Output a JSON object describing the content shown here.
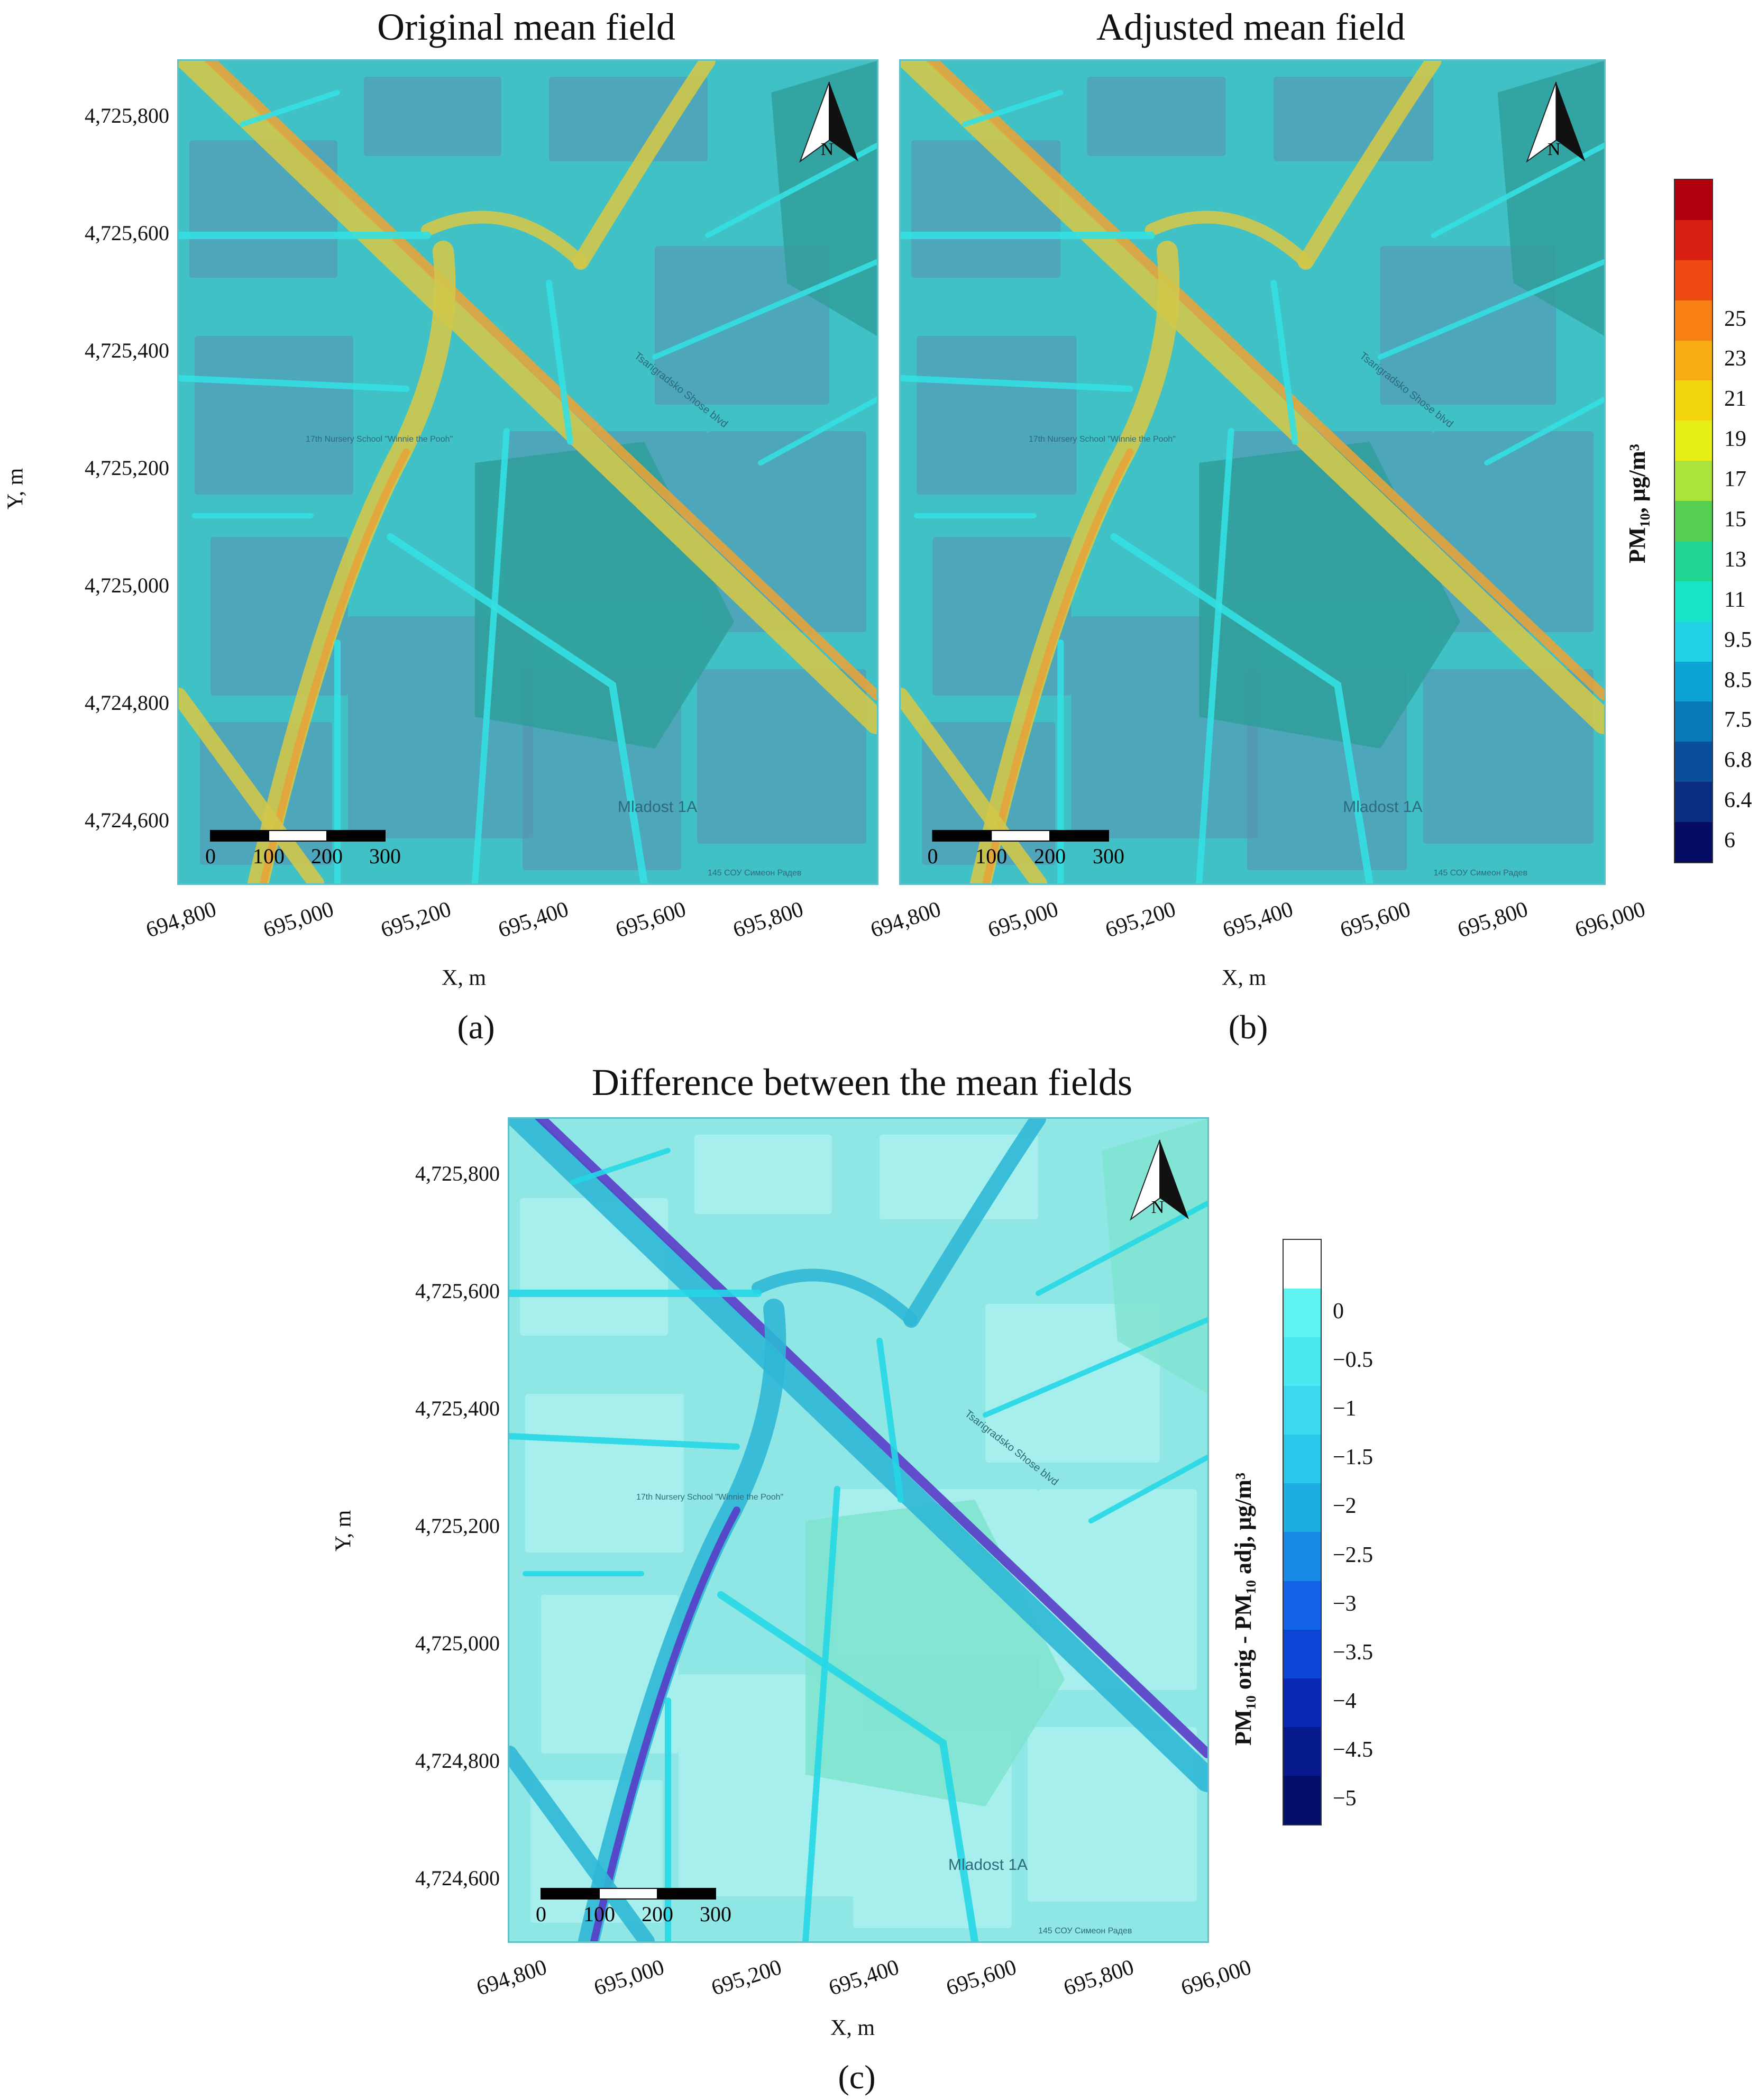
{
  "panels": [
    {
      "id": "a",
      "title": "Original mean field",
      "caption": "(a)",
      "ylabel": "Y, m",
      "xlabel": "X, m",
      "yticks": [
        "4,725,800",
        "4,725,600",
        "4,725,400",
        "4,725,200",
        "4,725,000",
        "4,724,800",
        "4,724,600"
      ],
      "xticks": [
        "694,800",
        "695,000",
        "695,200",
        "695,400",
        "695,600",
        "695,800"
      ]
    },
    {
      "id": "b",
      "title": "Adjusted mean field",
      "caption": "(b)",
      "ylabel": "",
      "xlabel": "X, m",
      "yticks": [],
      "xticks": [
        "694,800",
        "695,000",
        "695,200",
        "695,400",
        "695,600",
        "695,800",
        "696,000"
      ]
    },
    {
      "id": "c",
      "title": "Difference between the mean fields",
      "caption": "(c)",
      "ylabel": "Y, m",
      "xlabel": "X, m",
      "yticks": [
        "4,725,800",
        "4,725,600",
        "4,725,400",
        "4,725,200",
        "4,725,000",
        "4,724,800",
        "4,724,600"
      ],
      "xticks": [
        "694,800",
        "695,000",
        "695,200",
        "695,400",
        "695,600",
        "695,800",
        "696,000"
      ]
    }
  ],
  "scalebar_labels": [
    "0",
    "100",
    "200",
    "300"
  ],
  "north_label": "N",
  "map_labels": {
    "district": "Mladost 1A",
    "nursery": "17th Nursery School \"Winnie the Pooh\"",
    "boulevard": "Tsarigradsko Shose blvd",
    "school": "145 СОУ Симеон Радев"
  },
  "colorbar_pm10": {
    "title": "PM₁₀, μg/m³",
    "labels": [
      "25",
      "23",
      "21",
      "19",
      "17",
      "15",
      "13",
      "11",
      "9.5",
      "8.5",
      "7.5",
      "6.8",
      "6.4",
      "6"
    ],
    "colors": [
      "#b3000f",
      "#d92015",
      "#f04a12",
      "#f77f14",
      "#f7ae12",
      "#f2d40f",
      "#e6ef16",
      "#a9e33b",
      "#54cf52",
      "#1ed591",
      "#17e3c8",
      "#22d1e8",
      "#0aa5d6",
      "#0779b8",
      "#0a4f9c",
      "#0b2d80",
      "#060c66"
    ]
  },
  "colorbar_diff": {
    "title": "PM₁₀ orig - PM₁₀ adj, μg/m³",
    "labels": [
      "0",
      "−0.5",
      "−1",
      "−1.5",
      "−2",
      "−2.5",
      "−3",
      "−3.5",
      "−4",
      "−4.5",
      "−5"
    ],
    "colors": [
      "#ffffff",
      "#5ef3f1",
      "#4ce8f1",
      "#3ad9ee",
      "#29c8ea",
      "#1caee2",
      "#1889e6",
      "#1363e8",
      "#0d44d8",
      "#0a2ab5",
      "#071b8f",
      "#040f6a"
    ]
  }
}
